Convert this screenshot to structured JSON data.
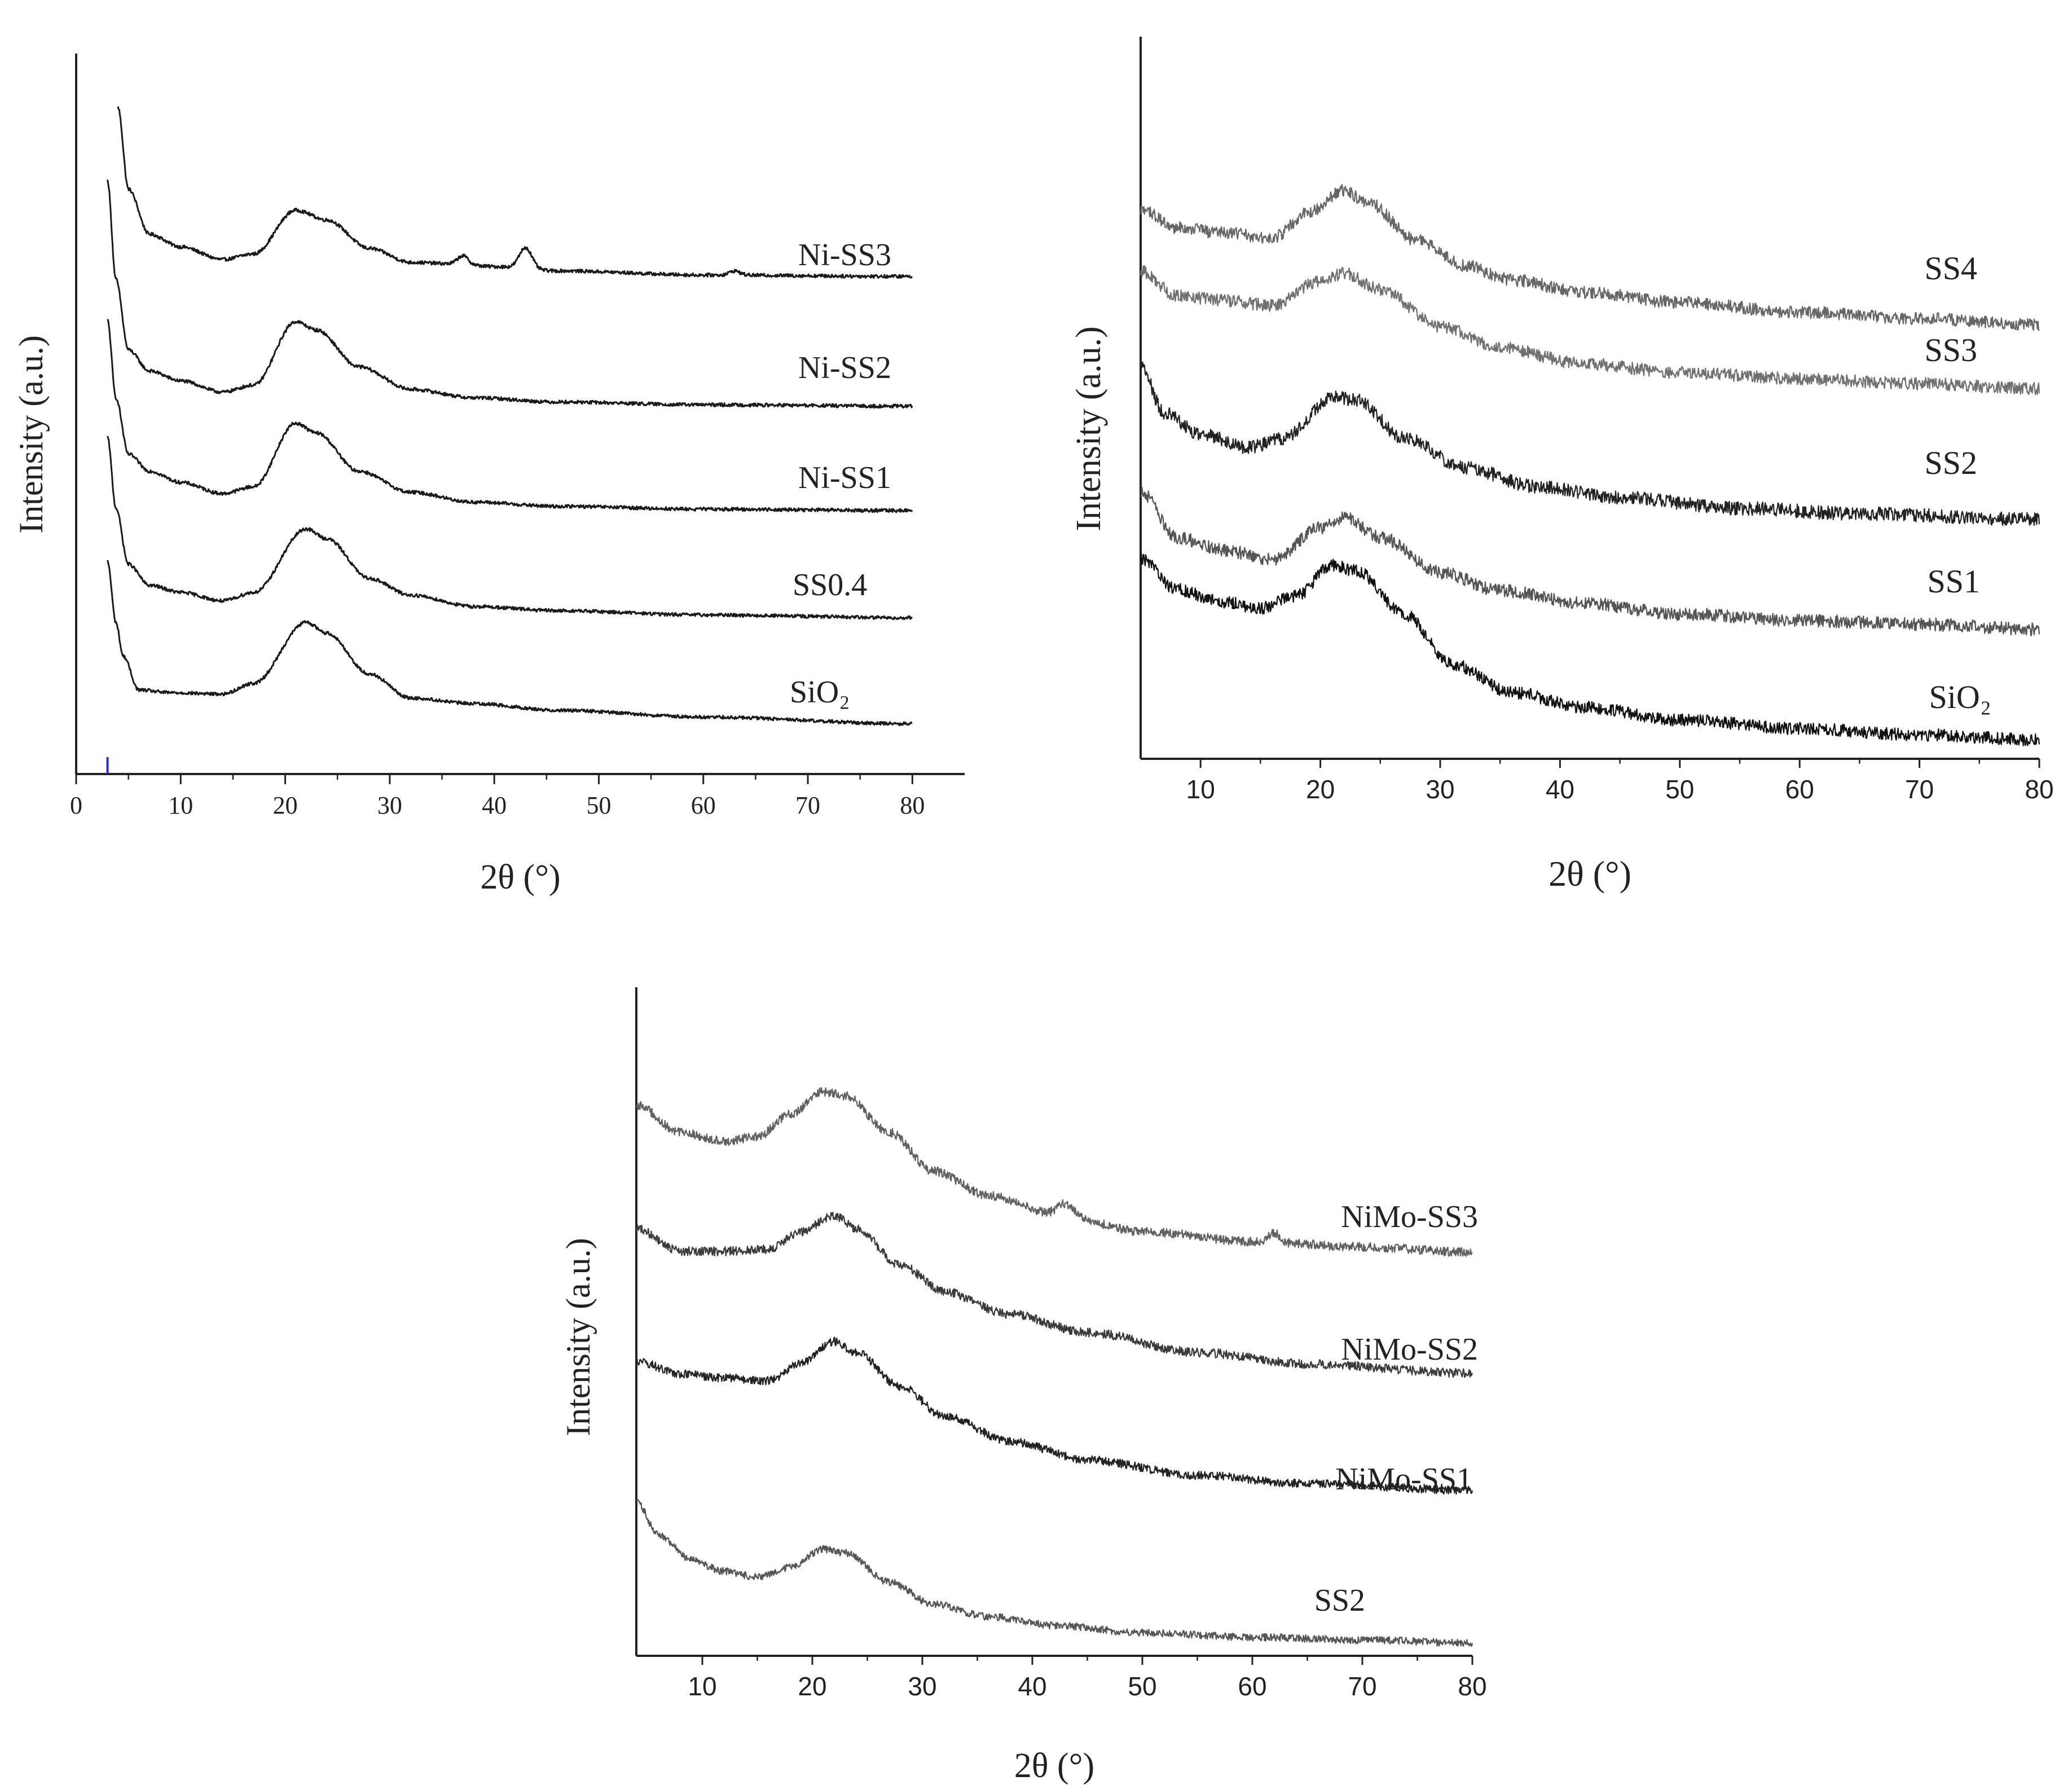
{
  "figure": {
    "panels": [
      {
        "panel_id": "top-left",
        "font": "serif",
        "xlabel": "2θ (°)",
        "ylabel": "Intensity (a.u.)",
        "tick_labels": [
          "0",
          "10",
          "20",
          "30",
          "40",
          "50",
          "60",
          "70",
          "80"
        ]
      },
      {
        "panel_id": "top-right",
        "font": "sans",
        "xlabel": "2θ (°)",
        "ylabel": "Intensity (a.u.)",
        "tick_labels": [
          "10",
          "20",
          "30",
          "40",
          "50",
          "60",
          "70",
          "80"
        ]
      },
      {
        "panel_id": "bottom",
        "font": "sans",
        "xlabel": "2θ (°)",
        "ylabel": "Intensity (a.u.)",
        "tick_labels": [
          "10",
          "20",
          "30",
          "40",
          "50",
          "60",
          "70",
          "80"
        ]
      }
    ]
  },
  "chart_data": [
    {
      "type": "line",
      "panel": "top-left",
      "title": "",
      "xlabel": "2θ (°)",
      "ylabel": "Intensity (a.u.)",
      "xlim": [
        0,
        85
      ],
      "xticks": [
        0,
        10,
        20,
        30,
        40,
        50,
        60,
        70,
        80
      ],
      "yticks": "none",
      "line_color": "#1a1a1a",
      "noise": 0.012,
      "series": [
        {
          "name": "Ni-SS3",
          "label": "Ni-SS3",
          "offset": 4.0,
          "start": 4,
          "shape": [
            [
              4,
              1.2
            ],
            [
              5,
              0.62
            ],
            [
              7,
              0.3
            ],
            [
              10,
              0.21
            ],
            [
              14,
              0.12
            ],
            [
              17,
              0.16
            ],
            [
              21,
              0.47
            ],
            [
              24,
              0.4
            ],
            [
              28,
              0.2
            ],
            [
              32,
              0.1
            ],
            [
              36,
              0.09
            ],
            [
              40,
              0.07
            ],
            [
              46,
              0.04
            ],
            [
              60,
              0.01
            ],
            [
              80,
              0.0
            ]
          ],
          "peaks": [
            [
              37,
              0.06,
              0.5
            ],
            [
              43,
              0.15,
              0.6
            ],
            [
              63,
              0.03,
              0.5
            ]
          ]
        },
        {
          "name": "Ni-SS2",
          "label": "Ni-SS2",
          "offset": 3.0,
          "start": 3,
          "shape": [
            [
              3,
              1.6
            ],
            [
              3.8,
              0.9
            ],
            [
              5,
              0.4
            ],
            [
              7,
              0.25
            ],
            [
              10,
              0.18
            ],
            [
              14,
              0.1
            ],
            [
              17,
              0.15
            ],
            [
              21,
              0.6
            ],
            [
              23,
              0.54
            ],
            [
              27,
              0.28
            ],
            [
              32,
              0.12
            ],
            [
              38,
              0.06
            ],
            [
              46,
              0.03
            ],
            [
              60,
              0.01
            ],
            [
              80,
              0.0
            ]
          ],
          "peaks": []
        },
        {
          "name": "Ni-SS1",
          "label": "Ni-SS1",
          "offset": 2.0,
          "start": 3,
          "shape": [
            [
              3,
              1.35
            ],
            [
              3.8,
              0.8
            ],
            [
              5,
              0.4
            ],
            [
              7,
              0.28
            ],
            [
              10,
              0.2
            ],
            [
              14,
              0.12
            ],
            [
              17,
              0.17
            ],
            [
              21,
              0.62
            ],
            [
              23,
              0.55
            ],
            [
              27,
              0.28
            ],
            [
              32,
              0.13
            ],
            [
              38,
              0.06
            ],
            [
              46,
              0.03
            ],
            [
              60,
              0.01
            ],
            [
              80,
              0.0
            ]
          ],
          "peaks": []
        },
        {
          "name": "SS0.4",
          "label": "SS0.4",
          "offset": 1.0,
          "start": 3,
          "shape": [
            [
              3,
              1.3
            ],
            [
              3.8,
              0.8
            ],
            [
              5,
              0.4
            ],
            [
              7,
              0.25
            ],
            [
              10,
              0.2
            ],
            [
              14,
              0.14
            ],
            [
              17,
              0.2
            ],
            [
              22,
              0.65
            ],
            [
              24,
              0.58
            ],
            [
              28,
              0.3
            ],
            [
              32,
              0.18
            ],
            [
              38,
              0.1
            ],
            [
              46,
              0.07
            ],
            [
              60,
              0.04
            ],
            [
              80,
              0.02
            ]
          ],
          "peaks": []
        },
        {
          "name": "SiO2",
          "label": "SiO₂",
          "offset": 0.0,
          "start": 3,
          "shape": [
            [
              3,
              1.25
            ],
            [
              3.8,
              0.8
            ],
            [
              4.5,
              0.55
            ],
            [
              6,
              0.3
            ],
            [
              9,
              0.28
            ],
            [
              14,
              0.27
            ],
            [
              17,
              0.35
            ],
            [
              22,
              0.8
            ],
            [
              24,
              0.72
            ],
            [
              28,
              0.42
            ],
            [
              32,
              0.24
            ],
            [
              38,
              0.2
            ],
            [
              46,
              0.15
            ],
            [
              60,
              0.1
            ],
            [
              80,
              0.05
            ]
          ],
          "peaks": []
        }
      ]
    },
    {
      "type": "line",
      "panel": "top-right",
      "title": "",
      "xlabel": "2θ (°)",
      "ylabel": "Intensity (a.u.)",
      "xlim": [
        5,
        80
      ],
      "xticks": [
        10,
        20,
        30,
        40,
        50,
        60,
        70,
        80
      ],
      "yticks": "none",
      "noise": 0.05,
      "series": [
        {
          "name": "SS4",
          "label": "SS4",
          "offset": 4.0,
          "start": 5,
          "color": "#666666",
          "shape": [
            [
              5,
              0.95
            ],
            [
              8,
              0.8
            ],
            [
              12,
              0.76
            ],
            [
              16,
              0.72
            ],
            [
              19,
              0.92
            ],
            [
              22,
              1.1
            ],
            [
              24,
              1.0
            ],
            [
              28,
              0.7
            ],
            [
              32,
              0.5
            ],
            [
              36,
              0.38
            ],
            [
              42,
              0.28
            ],
            [
              50,
              0.2
            ],
            [
              60,
              0.12
            ],
            [
              70,
              0.07
            ],
            [
              80,
              0.02
            ]
          ]
        },
        {
          "name": "SS3",
          "label": "SS3",
          "offset": 3.0,
          "start": 5,
          "color": "#707070",
          "shape": [
            [
              5,
              1.0
            ],
            [
              8,
              0.8
            ],
            [
              12,
              0.76
            ],
            [
              16,
              0.72
            ],
            [
              20,
              0.92
            ],
            [
              22,
              0.98
            ],
            [
              25,
              0.85
            ],
            [
              30,
              0.55
            ],
            [
              35,
              0.38
            ],
            [
              42,
              0.25
            ],
            [
              50,
              0.18
            ],
            [
              60,
              0.13
            ],
            [
              70,
              0.09
            ],
            [
              80,
              0.05
            ]
          ]
        },
        {
          "name": "SS2",
          "label": "SS2",
          "offset": 2.0,
          "start": 5,
          "color": "#222222",
          "shape": [
            [
              5,
              1.15
            ],
            [
              7,
              0.8
            ],
            [
              10,
              0.65
            ],
            [
              14,
              0.55
            ],
            [
              17,
              0.62
            ],
            [
              21,
              0.92
            ],
            [
              23,
              0.9
            ],
            [
              27,
              0.62
            ],
            [
              32,
              0.4
            ],
            [
              38,
              0.26
            ],
            [
              45,
              0.18
            ],
            [
              55,
              0.1
            ],
            [
              65,
              0.06
            ],
            [
              80,
              0.02
            ]
          ]
        },
        {
          "name": "SS1",
          "label": "SS1",
          "offset": 1.0,
          "start": 5,
          "color": "#555555",
          "shape": [
            [
              5,
              1.1
            ],
            [
              8,
              0.75
            ],
            [
              12,
              0.65
            ],
            [
              16,
              0.58
            ],
            [
              20,
              0.82
            ],
            [
              22,
              0.9
            ],
            [
              25,
              0.75
            ],
            [
              30,
              0.48
            ],
            [
              35,
              0.34
            ],
            [
              42,
              0.24
            ],
            [
              50,
              0.16
            ],
            [
              60,
              0.11
            ],
            [
              70,
              0.08
            ],
            [
              80,
              0.04
            ]
          ]
        },
        {
          "name": "SiO2",
          "label": "SiO₂",
          "offset": 0.0,
          "start": 5,
          "color": "#111111",
          "shape": [
            [
              5,
              1.5
            ],
            [
              8,
              1.25
            ],
            [
              12,
              1.15
            ],
            [
              15,
              1.1
            ],
            [
              18,
              1.2
            ],
            [
              21,
              1.45
            ],
            [
              23,
              1.4
            ],
            [
              27,
              1.05
            ],
            [
              31,
              0.65
            ],
            [
              36,
              0.42
            ],
            [
              42,
              0.3
            ],
            [
              50,
              0.2
            ],
            [
              60,
              0.13
            ],
            [
              70,
              0.08
            ],
            [
              80,
              0.04
            ]
          ]
        }
      ]
    },
    {
      "type": "line",
      "panel": "bottom",
      "title": "",
      "xlabel": "2θ (°)",
      "ylabel": "Intensity (a.u.)",
      "xlim": [
        4,
        80
      ],
      "xticks": [
        10,
        20,
        30,
        40,
        50,
        60,
        70,
        80
      ],
      "yticks": "none",
      "noise": 0.05,
      "series": [
        {
          "name": "NiMo-SS3",
          "label": "NiMo-SS3",
          "offset": 3.0,
          "start": 4,
          "color": "#606060",
          "shape": [
            [
              4,
              1.85
            ],
            [
              8,
              1.55
            ],
            [
              12,
              1.45
            ],
            [
              15,
              1.5
            ],
            [
              18,
              1.75
            ],
            [
              21,
              2.0
            ],
            [
              23,
              1.95
            ],
            [
              27,
              1.55
            ],
            [
              31,
              1.12
            ],
            [
              36,
              0.85
            ],
            [
              42,
              0.65
            ],
            [
              50,
              0.45
            ],
            [
              60,
              0.34
            ],
            [
              70,
              0.28
            ],
            [
              80,
              0.22
            ]
          ],
          "peaks": [
            [
              43,
              0.12,
              0.7
            ],
            [
              62,
              0.1,
              0.5
            ]
          ]
        },
        {
          "name": "NiMo-SS2",
          "label": "NiMo-SS2",
          "offset": 2.0,
          "start": 4,
          "color": "#3a3a3a",
          "shape": [
            [
              4,
              1.95
            ],
            [
              8,
              1.7
            ],
            [
              12,
              1.7
            ],
            [
              16,
              1.72
            ],
            [
              19,
              1.92
            ],
            [
              22,
              2.1
            ],
            [
              24,
              1.95
            ],
            [
              28,
              1.55
            ],
            [
              32,
              1.25
            ],
            [
              38,
              1.0
            ],
            [
              45,
              0.8
            ],
            [
              55,
              0.58
            ],
            [
              65,
              0.45
            ],
            [
              80,
              0.35
            ]
          ]
        },
        {
          "name": "NiMo-SS1",
          "label": "NiMo-SS1",
          "offset": 1.0,
          "start": 4,
          "color": "#222222",
          "shape": [
            [
              4,
              1.95
            ],
            [
              8,
              1.8
            ],
            [
              12,
              1.75
            ],
            [
              16,
              1.72
            ],
            [
              19,
              1.92
            ],
            [
              22,
              2.18
            ],
            [
              24,
              2.05
            ],
            [
              28,
              1.65
            ],
            [
              32,
              1.3
            ],
            [
              38,
              1.0
            ],
            [
              45,
              0.78
            ],
            [
              55,
              0.6
            ],
            [
              65,
              0.5
            ],
            [
              80,
              0.42
            ]
          ]
        },
        {
          "name": "SS2",
          "label": "SS2",
          "offset": 0.0,
          "start": 4,
          "color": "#555555",
          "shape": [
            [
              4,
              1.95
            ],
            [
              6,
              1.5
            ],
            [
              9,
              1.15
            ],
            [
              12,
              1.0
            ],
            [
              15,
              0.92
            ],
            [
              18,
              1.05
            ],
            [
              21,
              1.3
            ],
            [
              23,
              1.25
            ],
            [
              27,
              0.85
            ],
            [
              31,
              0.55
            ],
            [
              36,
              0.38
            ],
            [
              42,
              0.26
            ],
            [
              50,
              0.16
            ],
            [
              60,
              0.1
            ],
            [
              70,
              0.06
            ],
            [
              80,
              0.02
            ]
          ]
        }
      ]
    }
  ]
}
